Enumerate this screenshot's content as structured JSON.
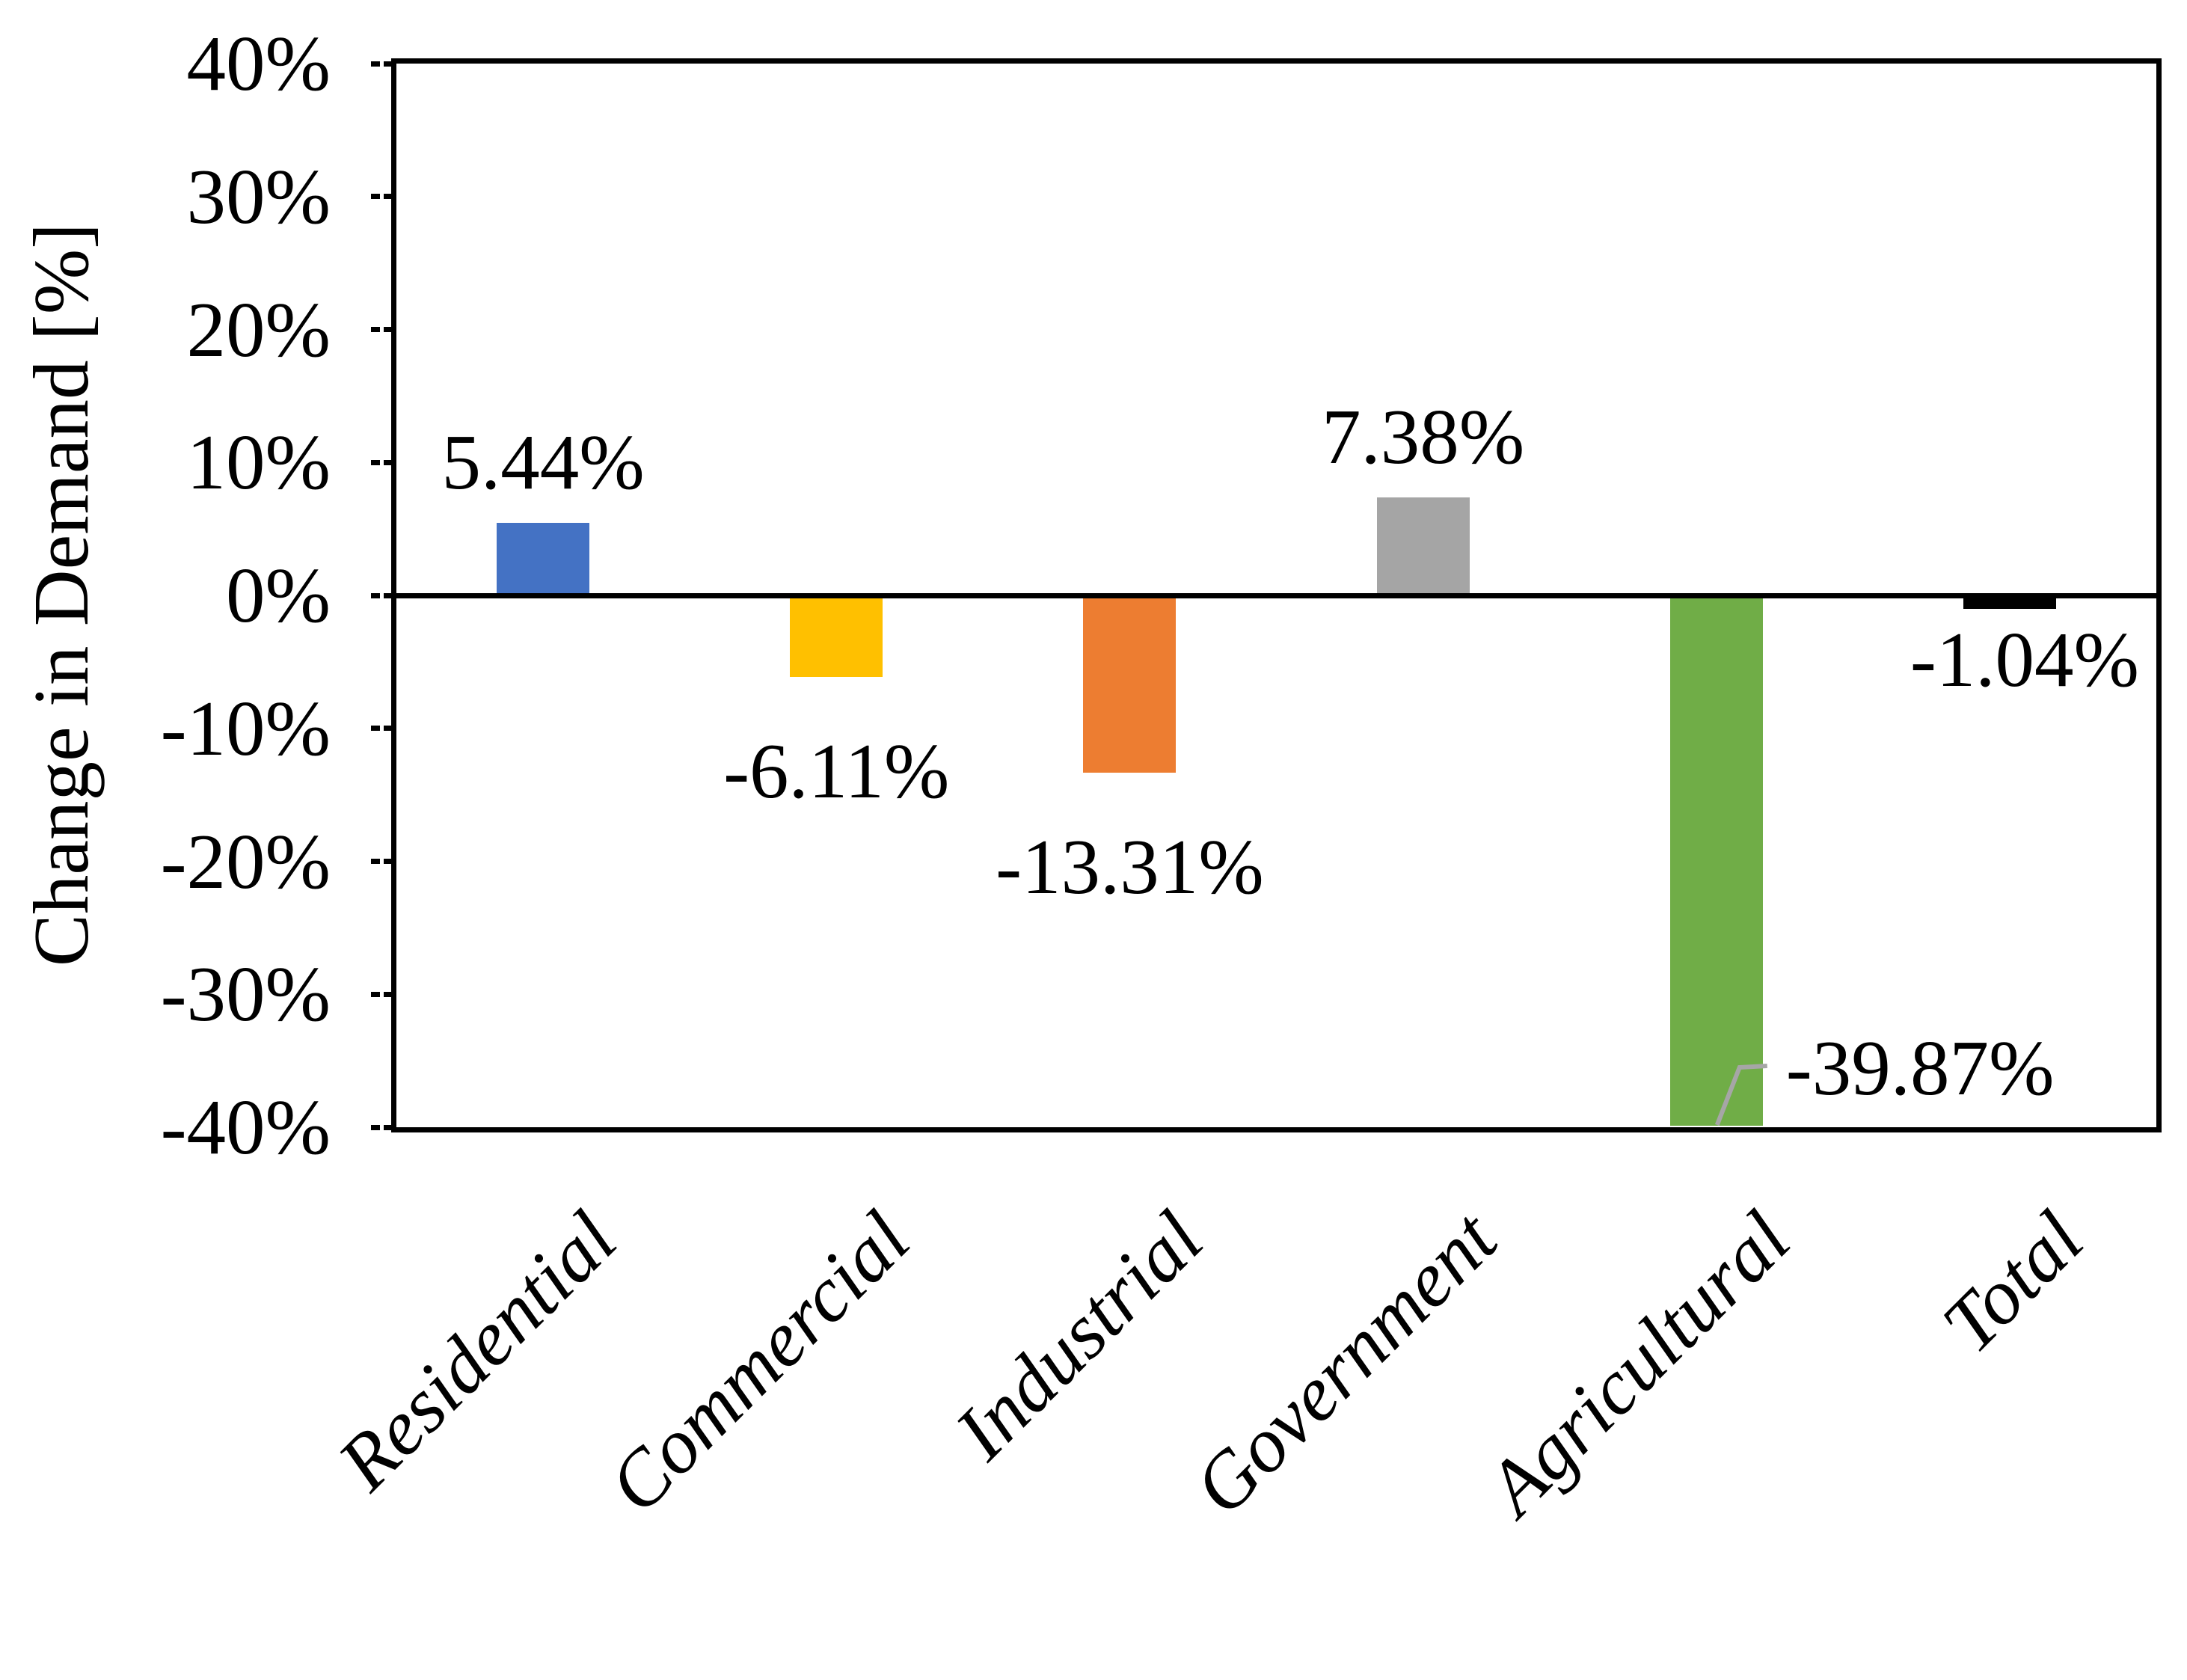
{
  "chart_data": {
    "type": "bar",
    "title": "",
    "ylabel": "Change in Demand [%]",
    "xlabel": "",
    "ylim": [
      -40,
      40
    ],
    "grid": false,
    "legend_position": "none",
    "yticks": [
      {
        "value": 40,
        "label": "40%"
      },
      {
        "value": 30,
        "label": "30%"
      },
      {
        "value": 20,
        "label": "20%"
      },
      {
        "value": 10,
        "label": "10%"
      },
      {
        "value": 0,
        "label": "0%"
      },
      {
        "value": -10,
        "label": "-10%"
      },
      {
        "value": -20,
        "label": "-20%"
      },
      {
        "value": -30,
        "label": "-30%"
      },
      {
        "value": -40,
        "label": "-40%"
      }
    ],
    "categories": [
      "Residential",
      "Commercial",
      "Industrial",
      "Government",
      "Agricultural",
      "Total"
    ],
    "values": [
      5.44,
      -6.11,
      -13.31,
      7.38,
      -39.87,
      -1.04
    ],
    "data_labels": [
      "5.44%",
      "-6.11%",
      "-13.31%",
      "7.38%",
      "-39.87%",
      "-1.04%"
    ],
    "bar_colors": [
      "#4472C4",
      "#FFC000",
      "#ED7D31",
      "#A5A5A5",
      "#70AD47",
      "#000000"
    ],
    "label_placements": [
      {
        "mode": "above"
      },
      {
        "mode": "below"
      },
      {
        "mode": "below"
      },
      {
        "mode": "above"
      },
      {
        "mode": "leader-right"
      },
      {
        "mode": "below",
        "gap": 12,
        "dx": 20
      }
    ],
    "leader_line_color": "#A6A6A6",
    "axis_color": "#000000"
  }
}
